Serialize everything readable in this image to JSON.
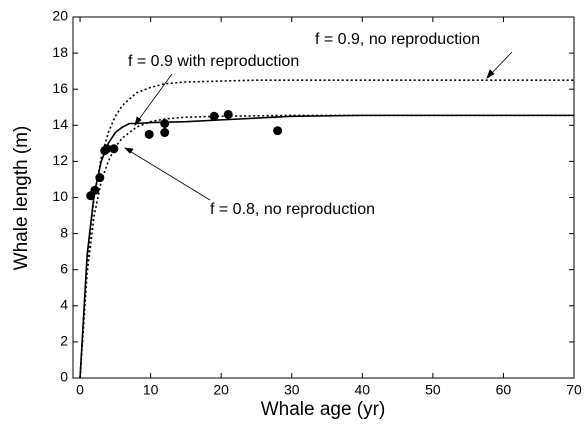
{
  "chart_data": {
    "type": "line",
    "xlabel": "Whale age (yr)",
    "ylabel": "Whale length (m)",
    "xlim": [
      -1,
      70
    ],
    "ylim": [
      0,
      20
    ],
    "xticks": [
      0,
      10,
      20,
      30,
      40,
      50,
      60,
      70
    ],
    "yticks": [
      0,
      2,
      4,
      6,
      8,
      10,
      12,
      14,
      16,
      18,
      20
    ],
    "annotations": [
      "f = 0.9, no reproduction",
      "f = 0.9 with reproduction",
      "f = 0.8, no reproduction"
    ],
    "points": {
      "color": "#000000",
      "x": [
        1.5,
        2.1,
        2.8,
        3.5,
        3.8,
        4.8,
        9.8,
        12,
        12,
        19,
        21,
        28
      ],
      "values": [
        10.1,
        10.4,
        11.1,
        12.6,
        12.7,
        12.7,
        13.5,
        13.6,
        14.1,
        14.5,
        14.6,
        13.7
      ]
    },
    "series": [
      {
        "name": "f = 0.9, no reproduction",
        "color": "#000000",
        "style": "dotted",
        "x": [
          0,
          1,
          2,
          3,
          4,
          5,
          6,
          8,
          10,
          12,
          15,
          20,
          25,
          30,
          40,
          50,
          60,
          70
        ],
        "values": [
          0,
          6.5,
          10.0,
          12.2,
          13.6,
          14.5,
          15.1,
          15.8,
          16.1,
          16.3,
          16.4,
          16.45,
          16.5,
          16.5,
          16.5,
          16.5,
          16.5,
          16.5
        ]
      },
      {
        "name": "f = 0.9 with reproduction",
        "color": "#000000",
        "style": "solid",
        "x": [
          0,
          1,
          2,
          3,
          4,
          5,
          6,
          7,
          8,
          10,
          15,
          20,
          30,
          40,
          70
        ],
        "values": [
          0,
          6.8,
          10.2,
          12.0,
          13.0,
          13.6,
          13.9,
          14.1,
          14.1,
          14.15,
          14.2,
          14.3,
          14.5,
          14.55,
          14.55
        ]
      },
      {
        "name": "f = 0.8, no reproduction",
        "color": "#000000",
        "style": "dotted",
        "x": [
          0,
          1,
          2,
          3,
          4,
          5,
          6,
          8,
          10,
          12,
          15,
          20,
          30,
          40,
          70
        ],
        "values": [
          0,
          5.8,
          9.0,
          10.9,
          12.0,
          12.8,
          13.3,
          13.9,
          14.2,
          14.35,
          14.45,
          14.5,
          14.55,
          14.55,
          14.55
        ]
      }
    ]
  }
}
